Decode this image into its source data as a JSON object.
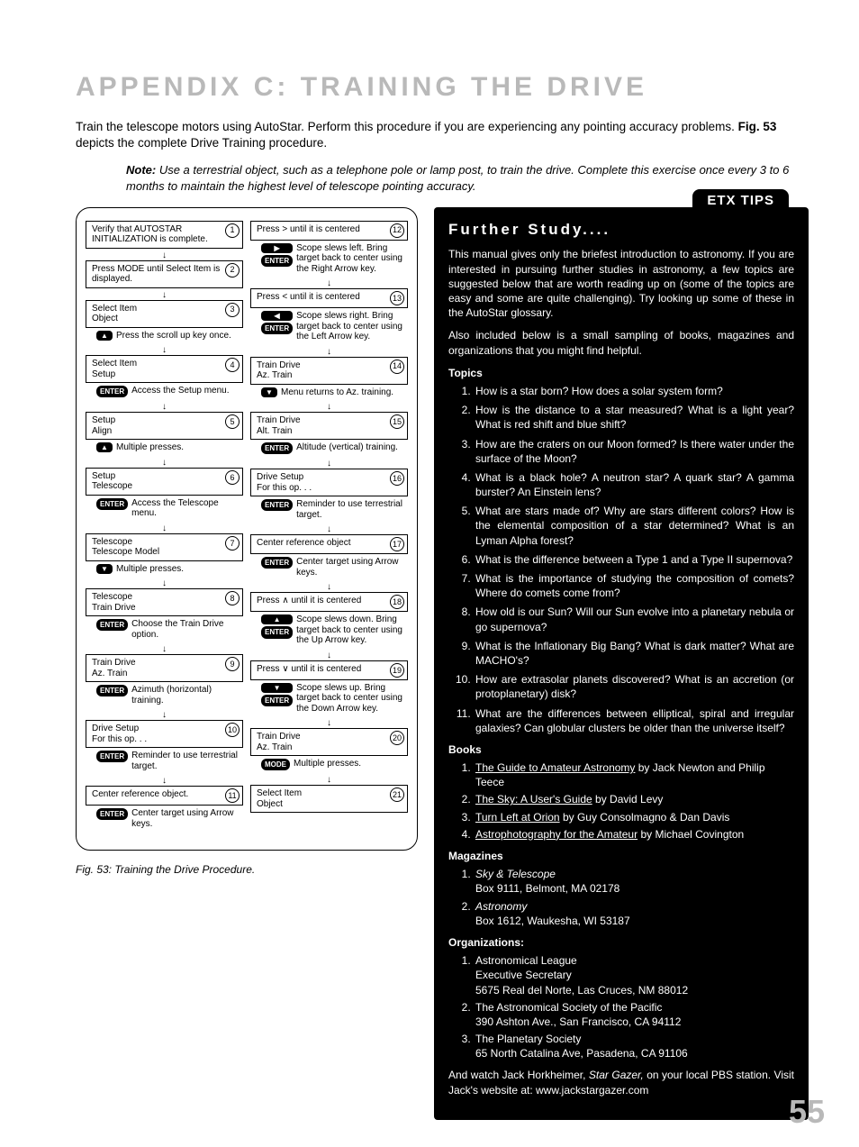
{
  "page": {
    "title": "APPENDIX C: TRAINING THE DRIVE",
    "intro": "Train the telescope motors using AutoStar. Perform this procedure if you are experiencing any pointing accuracy problems. <b>Fig. 53</b> depicts the complete Drive Training procedure.",
    "note": "<b>Note:</b> Use a terrestrial object, such as a telephone pole or lamp post, to train the drive. Complete this exercise once every 3 to 6 months to maintain the highest level of telescope pointing accuracy.",
    "caption": "Fig. 53: Training the Drive Procedure.",
    "pagenum": "55"
  },
  "colors": {
    "heading_gray": "#b9b9b9",
    "black": "#000000",
    "white": "#ffffff"
  },
  "flow": {
    "left": [
      {
        "num": "1",
        "box": "Verify that AUTOSTAR INITIALIZATION is complete."
      },
      {
        "num": "2",
        "box": "Press MODE until Select Item is displayed."
      },
      {
        "num": "3",
        "box": "Select Item\nObject",
        "key": "▲",
        "keycls": "arrow",
        "sub": "Press the scroll up key once."
      },
      {
        "num": "4",
        "box": "Select Item\nSetup",
        "key": "ENTER",
        "sub": "Access the Setup menu."
      },
      {
        "num": "5",
        "box": "Setup\nAlign",
        "key": "▲",
        "keycls": "arrow",
        "sub": "Multiple presses."
      },
      {
        "num": "6",
        "box": "Setup\nTelescope",
        "key": "ENTER",
        "sub": "Access the Telescope menu."
      },
      {
        "num": "7",
        "box": "Telescope\nTelescope Model",
        "key": "▼",
        "keycls": "arrow",
        "sub": "Multiple presses."
      },
      {
        "num": "8",
        "box": "Telescope\nTrain Drive",
        "key": "ENTER",
        "sub": "Choose the Train Drive option."
      },
      {
        "num": "9",
        "box": "Train Drive\nAz. Train",
        "key": "ENTER",
        "sub": "Azimuth (horizontal) training."
      },
      {
        "num": "10",
        "box": "Drive Setup\nFor this op. . .",
        "key": "ENTER",
        "sub": "Reminder to use terrestrial target."
      },
      {
        "num": "11",
        "box": "Center reference object.",
        "key": "ENTER",
        "sub": "Center target using Arrow keys."
      }
    ],
    "right": [
      {
        "num": "12",
        "box": "Press  >  until it is centered",
        "key": "ENTER",
        "icon": "▶",
        "sub": "Scope slews left. Bring target back to center using the Right Arrow key."
      },
      {
        "num": "13",
        "box": "Press  <  until it is centered",
        "key": "ENTER",
        "icon": "◀",
        "sub": "Scope slews right. Bring target back to center using the Left Arrow key."
      },
      {
        "num": "14",
        "box": "Train Drive\nAz. Train",
        "key": "▼",
        "keycls": "arrow",
        "sub": "Menu returns to Az. training."
      },
      {
        "num": "15",
        "box": "Train Drive\nAlt. Train",
        "key": "ENTER",
        "sub": "Altitude (vertical) training."
      },
      {
        "num": "16",
        "box": "Drive Setup\nFor this op. . .",
        "key": "ENTER",
        "sub": "Reminder to use terrestrial target."
      },
      {
        "num": "17",
        "box": "Center reference object",
        "key": "ENTER",
        "sub": "Center target using Arrow keys."
      },
      {
        "num": "18",
        "box": "Press  ∧  until it is centered",
        "key": "ENTER",
        "icon": "▲",
        "sub": "Scope slews down. Bring target back to center using the Up Arrow key."
      },
      {
        "num": "19",
        "box": "Press  ∨  until it is centered",
        "key": "ENTER",
        "icon": "▼",
        "sub": "Scope slews up. Bring target back to center using the Down Arrow key."
      },
      {
        "num": "20",
        "box": "Train Drive\nAz. Train",
        "key": "MODE",
        "sub": "Multiple presses."
      },
      {
        "num": "21",
        "box": "Select Item\nObject"
      }
    ]
  },
  "sidebar": {
    "tab": "ETX TIPS",
    "heading": "Further Study....",
    "p1": "This manual gives only the briefest introduction to astronomy. If you are interested in pursuing further studies in astronomy, a few topics are suggested below that are worth reading up on (some of the topics are easy and some are quite challenging). Try looking up some of these in the AutoStar glossary.",
    "p2": "Also included below is a small sampling of books, magazines and organizations that you might find helpful.",
    "topics_h": "Topics",
    "topics": [
      "How is a star born? How does a solar system form?",
      "How is the distance to a star measured? What is a light year? What is red shift and blue shift?",
      "How are the craters on our Moon formed? Is there water under the surface of the Moon?",
      "What is a black hole? A neutron star? A quark star? A gamma burster? An Einstein lens?",
      "What are stars made of? Why are stars different colors? How is the elemental composition of a star determined? What is an Lyman Alpha forest?",
      "What is the difference between a Type 1 and a Type II supernova?",
      "What is the importance of studying the composition of comets? Where do comets come from?",
      "How old is our Sun? Will our Sun evolve into a planetary nebula or go supernova?",
      "What is the Inflationary Big Bang? What is dark matter? What are MACHO's?",
      "How are extrasolar planets discovered? What is an accretion (or protoplanetary) disk?",
      "What are the differences between elliptical, spiral and irregular galaxies? Can globular clusters be older than the universe itself?"
    ],
    "books_h": "Books",
    "books": [
      {
        "title": "The Guide to Amateur Astronomy",
        "rest": " by Jack Newton and Philip Teece"
      },
      {
        "title": "The Sky: A User's Guide",
        "rest": " by David Levy"
      },
      {
        "title": "Turn Left at Orion",
        "rest": " by Guy Consolmagno & Dan Davis"
      },
      {
        "title": "Astrophotography for the Amateur",
        "rest": " by Michael Covington"
      }
    ],
    "mags_h": "Magazines",
    "mags": [
      {
        "name": "Sky & Telescope",
        "addr": "Box 9111, Belmont, MA 02178"
      },
      {
        "name": "Astronomy",
        "addr": "Box 1612, Waukesha, WI 53187"
      }
    ],
    "orgs_h": "Organizations:",
    "orgs": [
      "Astronomical League\nExecutive Secretary\n5675 Real del Norte, Las Cruces, NM 88012",
      "The Astronomical Society of the Pacific\n390 Ashton Ave., San Francisco, CA 94112",
      "The Planetary Society\n65 North Catalina Ave, Pasadena, CA 91106"
    ],
    "footer": "And watch Jack Horkheimer, <span class=\"ital\">Star Gazer,</span> on your local PBS station. Visit Jack's website at: www.jackstargazer.com"
  }
}
